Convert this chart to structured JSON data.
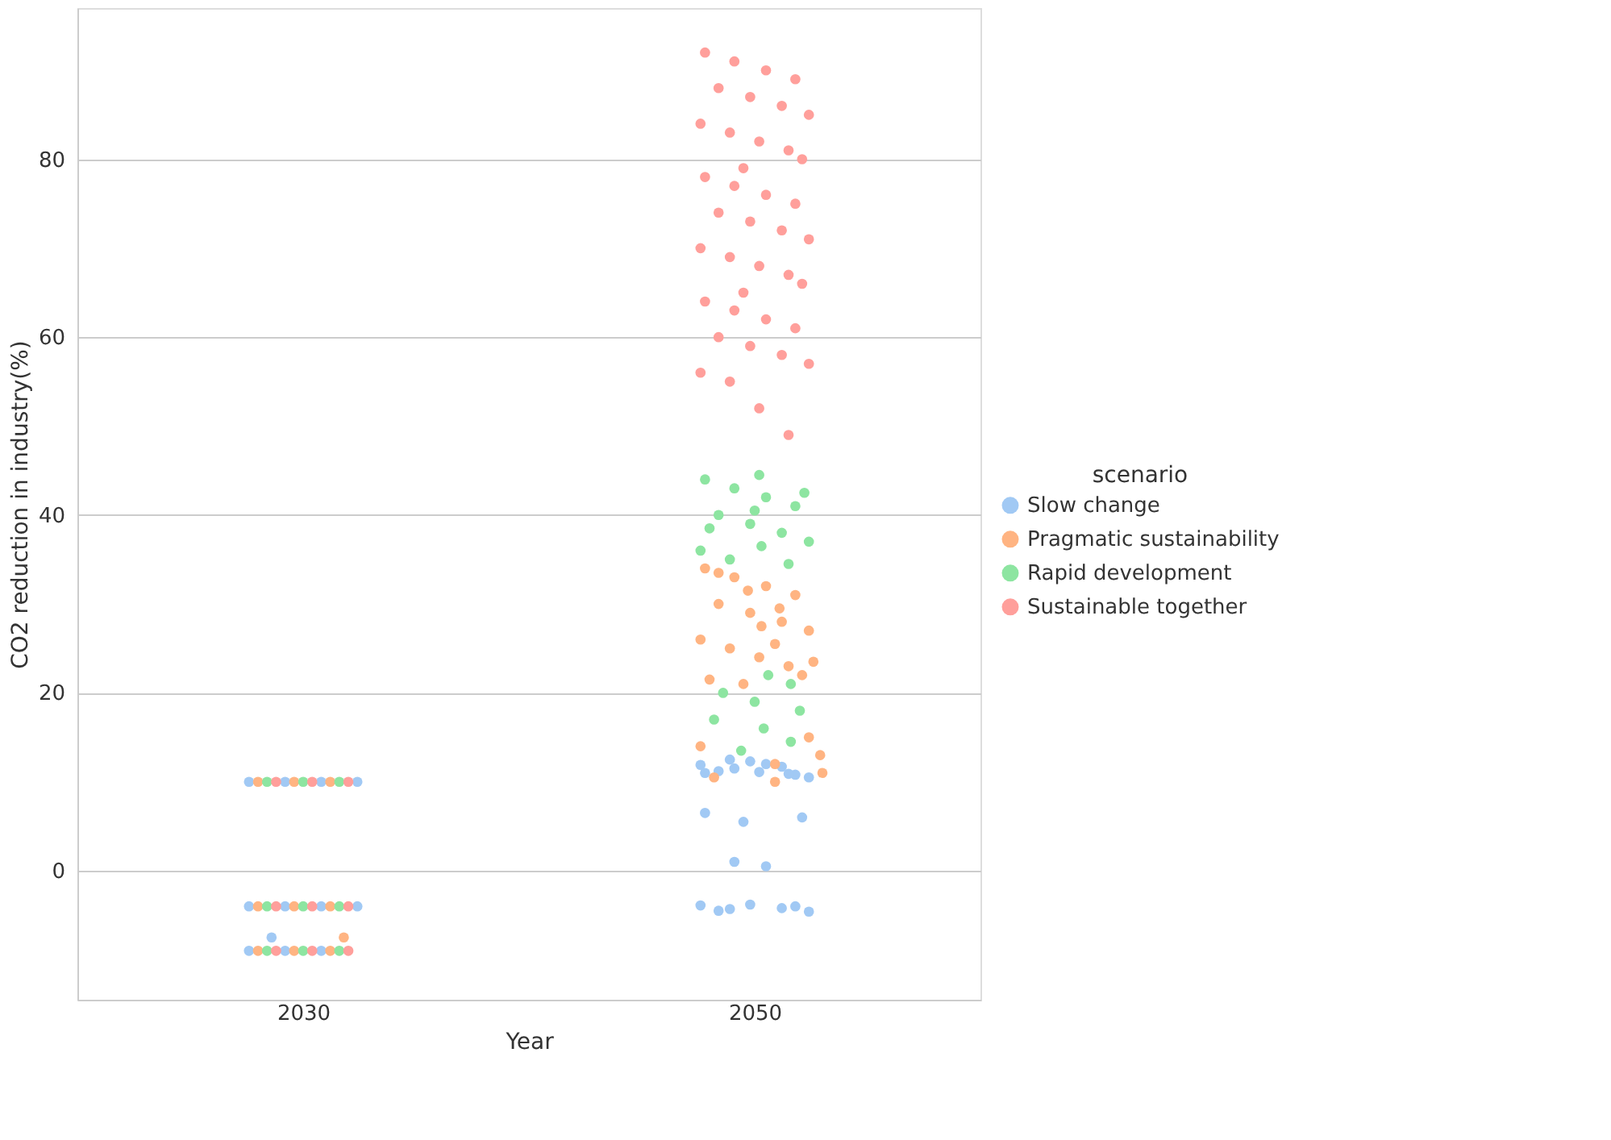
{
  "chart_data": {
    "type": "scatter",
    "xlabel": "Year",
    "ylabel": "CO2 reduction in industry(%)",
    "legend_title": "scenario",
    "legend": "right",
    "grid": "y",
    "marker": "circle",
    "xlim": [
      2020,
      2060
    ],
    "xticks": [
      2030,
      2050
    ],
    "ylim": [
      -14.5,
      97
    ],
    "yticks": [
      0,
      20,
      40,
      60,
      80
    ],
    "series": [
      {
        "name": "Slow change",
        "color": "#a1c9f4",
        "x": [
          2027.6,
          2029.2,
          2030.8,
          2032.4,
          2027.6,
          2029.2,
          2030.8,
          2032.4,
          2027.6,
          2029.2,
          2030.8,
          2028.6,
          2047.8,
          2049.1,
          2050.5,
          2051.8,
          2048.4,
          2049.8,
          2051.2,
          2052.4,
          2047.6,
          2048.9,
          2050.2,
          2051.5,
          2052.1,
          2049.5,
          2047.8,
          2049.1,
          2050.5,
          2051.8,
          2048.4,
          2049.8,
          2051.2,
          2052.4,
          2047.6,
          2048.9
        ],
        "values": [
          10,
          10,
          10,
          10,
          -4,
          -4,
          -4,
          -4,
          -9,
          -9,
          -9,
          -7.5,
          11,
          11.5,
          12,
          10.8,
          11.2,
          12.3,
          11.7,
          10.5,
          11.9,
          12.5,
          11.1,
          10.9,
          6,
          5.5,
          6.5,
          1,
          0.5,
          -4,
          -4.5,
          -3.8,
          -4.2,
          -4.6,
          -3.9,
          -4.3
        ]
      },
      {
        "name": "Pragmatic sustainability",
        "color": "#ffb482",
        "x": [
          2028.0,
          2029.6,
          2031.2,
          2028.0,
          2029.6,
          2031.2,
          2028.0,
          2029.6,
          2031.2,
          2031.8,
          2047.8,
          2049.1,
          2050.5,
          2051.8,
          2048.4,
          2049.8,
          2051.2,
          2052.4,
          2047.6,
          2048.9,
          2050.2,
          2051.5,
          2052.1,
          2049.5,
          2048.4,
          2049.7,
          2051.1,
          2050.3,
          2050.9,
          2052.6,
          2048.0,
          2052.4,
          2047.6,
          2052.9,
          2050.9,
          2048.2,
          2050.9,
          2053.0
        ],
        "values": [
          10,
          10,
          10,
          -4,
          -4,
          -4,
          -9,
          -9,
          -9,
          -7.5,
          34,
          33,
          32,
          31,
          30,
          29,
          28,
          27,
          26,
          25,
          24,
          23,
          22,
          21,
          33.5,
          31.5,
          29.5,
          27.5,
          25.5,
          23.5,
          21.5,
          15,
          14,
          13,
          12,
          10.5,
          10,
          11
        ]
      },
      {
        "name": "Rapid development",
        "color": "#8de5a1",
        "x": [
          2028.4,
          2030.0,
          2031.6,
          2028.4,
          2030.0,
          2031.6,
          2028.4,
          2030.0,
          2031.6,
          2047.8,
          2049.1,
          2050.5,
          2051.8,
          2048.4,
          2049.8,
          2051.2,
          2052.4,
          2047.6,
          2048.9,
          2050.2,
          2052.2,
          2050.0,
          2048.0,
          2050.3,
          2051.5,
          2050.6,
          2051.6,
          2048.6,
          2050.0,
          2052.0,
          2048.2,
          2050.4,
          2051.6,
          2049.4
        ],
        "values": [
          10,
          10,
          10,
          -4,
          -4,
          -4,
          -9,
          -9,
          -9,
          44,
          43,
          42,
          41,
          40,
          39,
          38,
          37,
          36,
          35,
          44.5,
          42.5,
          40.5,
          38.5,
          36.5,
          34.5,
          22,
          21,
          20,
          19,
          18,
          17,
          16,
          14.5,
          13.5
        ]
      },
      {
        "name": "Sustainable together",
        "color": "#ff9f9b",
        "x": [
          2028.8,
          2030.4,
          2032.0,
          2028.8,
          2030.4,
          2032.0,
          2028.8,
          2030.4,
          2032.0,
          2047.8,
          2049.1,
          2050.5,
          2051.8,
          2048.4,
          2049.8,
          2051.2,
          2052.4,
          2047.6,
          2048.9,
          2050.2,
          2051.5,
          2052.1,
          2049.5,
          2047.8,
          2049.1,
          2050.5,
          2051.8,
          2048.4,
          2049.8,
          2051.2,
          2052.4,
          2047.6,
          2048.9,
          2050.2,
          2051.5,
          2052.1,
          2049.5,
          2047.8,
          2049.1,
          2050.5,
          2051.8,
          2048.4,
          2049.8,
          2051.2,
          2052.4,
          2047.6,
          2048.9,
          2050.2,
          2051.5
        ],
        "values": [
          10,
          10,
          10,
          -4,
          -4,
          -4,
          -9,
          -9,
          -9,
          92,
          91,
          90,
          89,
          88,
          87,
          86,
          85,
          84,
          83,
          82,
          81,
          80,
          79,
          78,
          77,
          76,
          75,
          74,
          73,
          72,
          71,
          70,
          69,
          68,
          67,
          66,
          65,
          64,
          63,
          62,
          61,
          60,
          59,
          58,
          57,
          56,
          55,
          52,
          49
        ]
      }
    ]
  }
}
